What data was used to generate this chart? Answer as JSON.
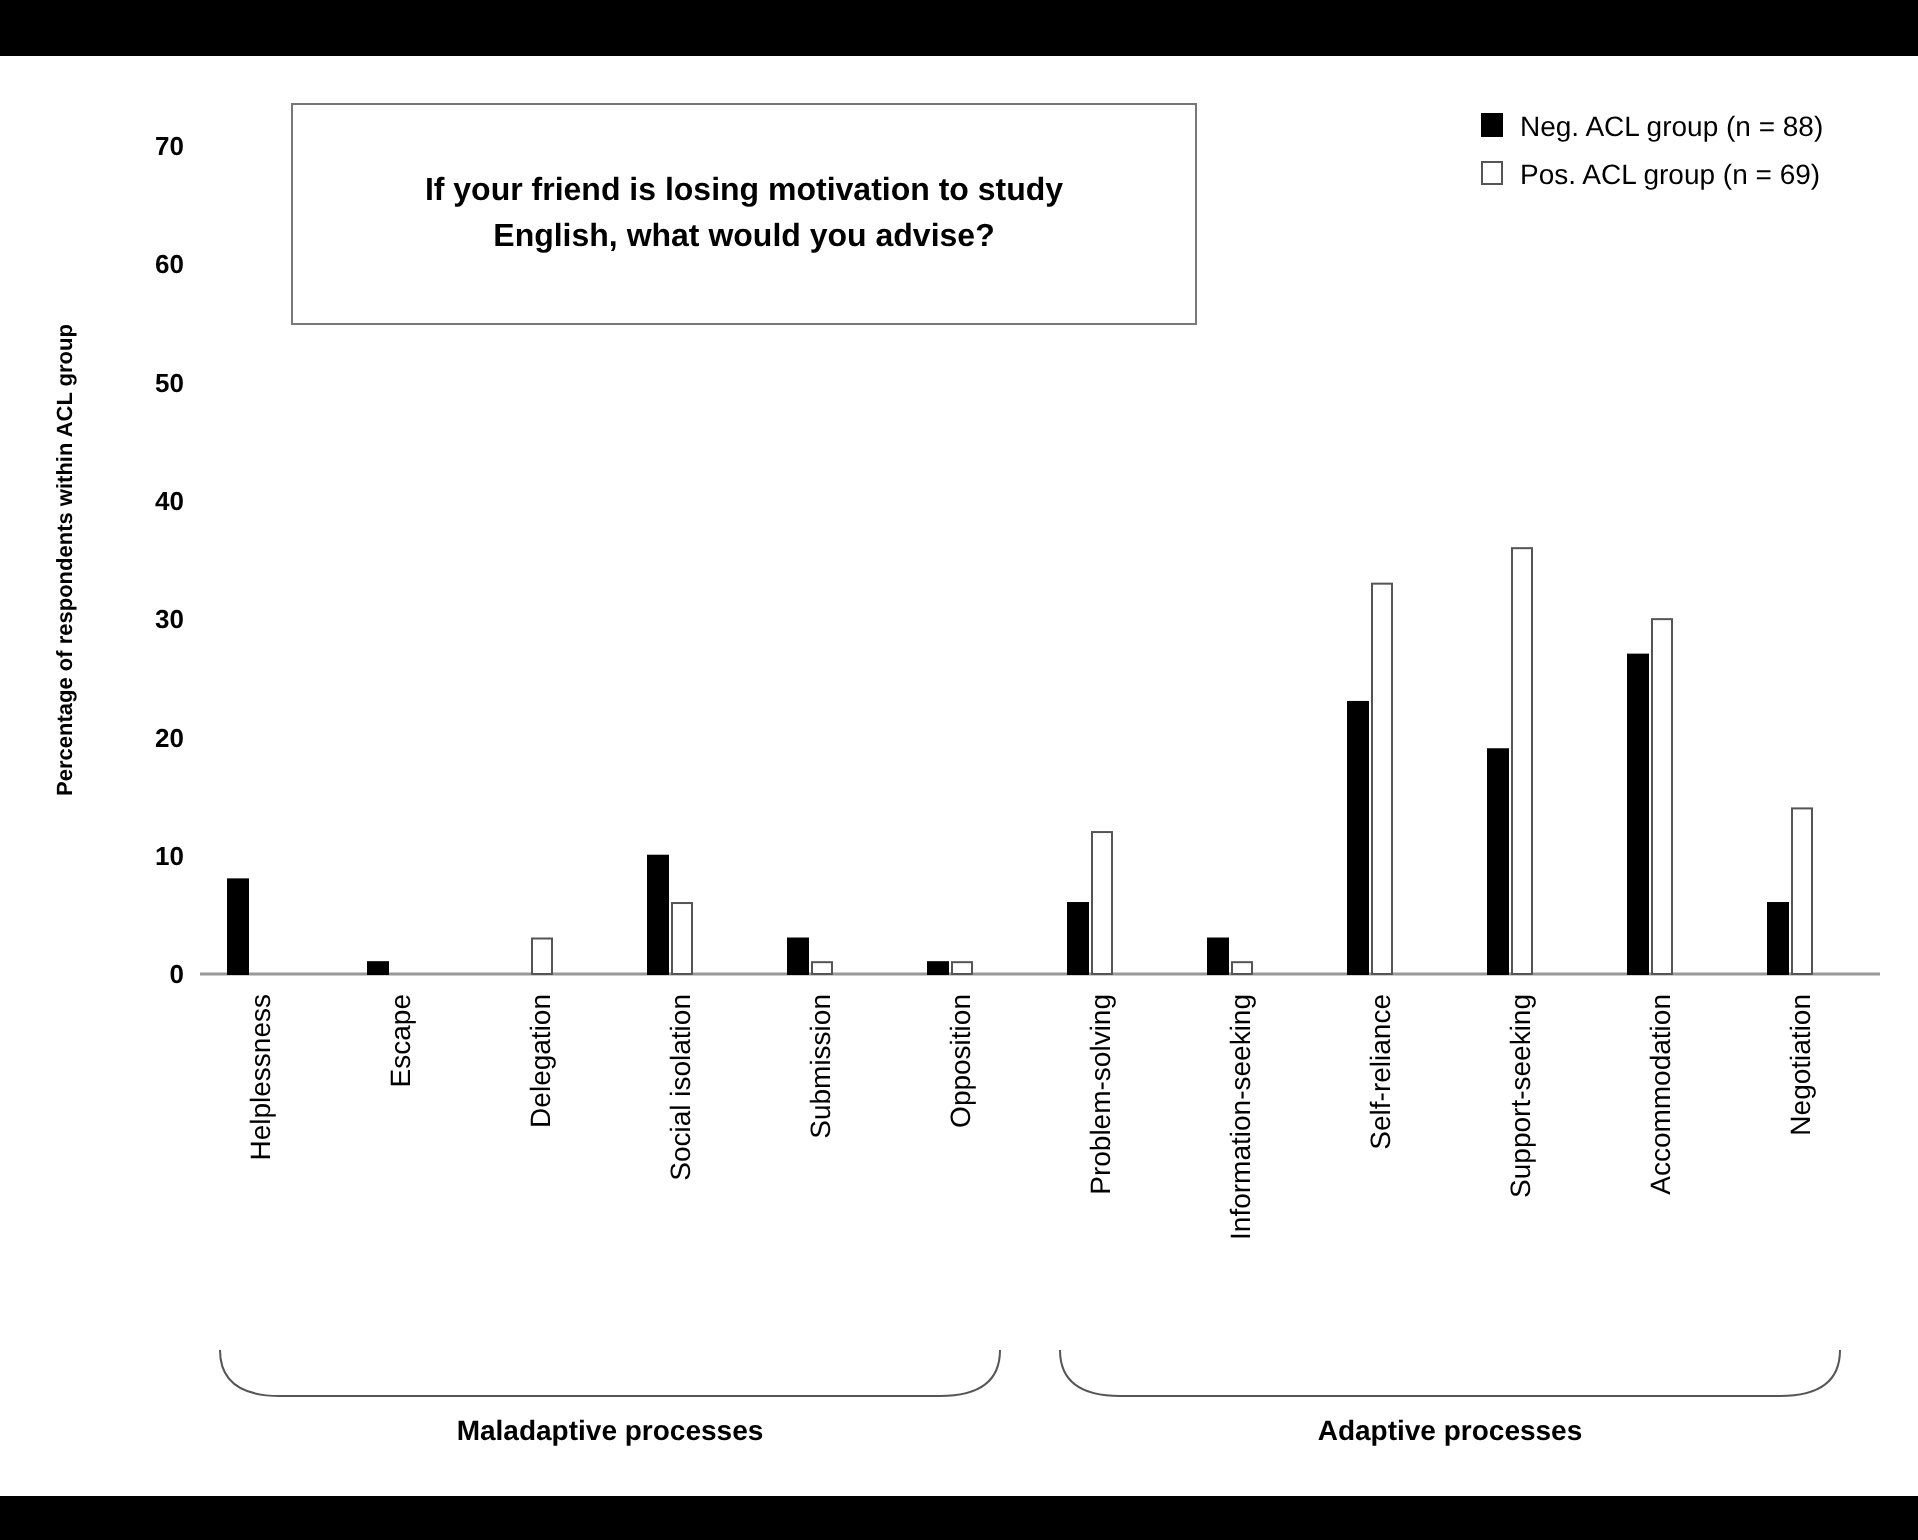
{
  "chart_data": {
    "type": "bar",
    "title": "If your friend is losing motivation to study English, what would you advise?",
    "ylabel": "Percentage of respondents within ACL group",
    "categories": [
      "Helplessness",
      "Escape",
      "Delegation",
      "Social isolation",
      "Submission",
      "Opposition",
      "Problem-solving",
      "Information-seeking",
      "Self-reliance",
      "Support-seeking",
      "Accommodation",
      "Negotiation"
    ],
    "series": [
      {
        "name": "Neg. ACL group (n = 88)",
        "color": "#000000",
        "values": [
          8,
          1,
          0,
          10,
          3,
          1,
          6,
          3,
          23,
          19,
          27,
          6
        ]
      },
      {
        "name": "Pos. ACL group (n = 69)",
        "color": "#ffffff",
        "values": [
          0,
          0,
          3,
          6,
          1,
          1,
          12,
          1,
          33,
          36,
          30,
          14
        ]
      }
    ],
    "ylim": [
      0,
      70
    ],
    "yticks": [
      0,
      10,
      20,
      30,
      40,
      50,
      60,
      70
    ],
    "grid": false,
    "legend": "top right",
    "annotations": [
      "Maladaptive processes",
      "Adaptive processes"
    ]
  }
}
